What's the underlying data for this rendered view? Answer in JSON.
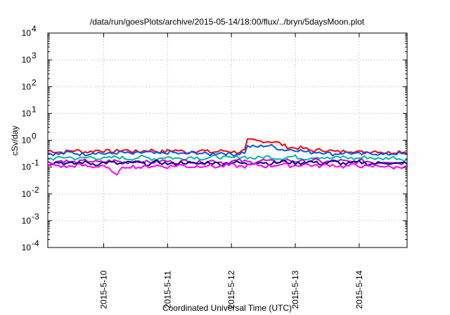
{
  "chart_data": {
    "type": "line",
    "title": "/data/run/goesPlots/archive/2015-05-14/18:00/flux/../bryn/5daysMoon.plot",
    "xlabel": "Coordinated Universal Time (UTC)",
    "ylabel": "cSv/day",
    "x_range": [
      "2015-05-09 03:00",
      "2015-05-14 18:00"
    ],
    "x_ticks": [
      "2015-5-10",
      "2015-5-11",
      "2015-5-12",
      "2015-5-13",
      "2015-5-14"
    ],
    "y_scale": "log",
    "ylim": [
      0.0001,
      10000
    ],
    "y_tick_bases": [
      "10",
      "10",
      "10",
      "10",
      "10",
      "10",
      "10",
      "10",
      "10"
    ],
    "y_tick_exponents": [
      "-4",
      "-3",
      "-2",
      "-1",
      "0",
      "1",
      "2",
      "3",
      "4"
    ],
    "grid": true,
    "legend": "none",
    "series": [
      {
        "color": "#ff0000",
        "x": [
          "2015-05-09 03:00",
          "2015-05-10 00:00",
          "2015-05-11 00:00",
          "2015-05-12 00:00",
          "2015-05-12 05:00",
          "2015-05-12 06:00",
          "2015-05-12 12:00",
          "2015-05-12 18:00",
          "2015-05-13 00:00",
          "2015-05-13 12:00",
          "2015-05-14 00:00",
          "2015-05-14 18:00"
        ],
        "y": [
          0.38,
          0.4,
          0.4,
          0.38,
          0.4,
          0.9,
          1.0,
          0.75,
          0.5,
          0.4,
          0.38,
          0.36
        ]
      },
      {
        "color": "#0055ff",
        "x": [
          "2015-05-09 03:00",
          "2015-05-10 00:00",
          "2015-05-11 00:00",
          "2015-05-12 00:00",
          "2015-05-12 05:00",
          "2015-05-12 06:00",
          "2015-05-12 12:00",
          "2015-05-12 18:00",
          "2015-05-13 00:00",
          "2015-05-13 12:00",
          "2015-05-14 00:00",
          "2015-05-14 18:00"
        ],
        "y": [
          0.32,
          0.33,
          0.33,
          0.32,
          0.33,
          0.55,
          0.65,
          0.5,
          0.42,
          0.33,
          0.32,
          0.3
        ]
      },
      {
        "color": "#00bb99",
        "x": [
          "2015-05-09 03:00",
          "2015-05-10 00:00",
          "2015-05-11 00:00",
          "2015-05-12 00:00",
          "2015-05-13 00:00",
          "2015-05-14 00:00",
          "2015-05-14 18:00"
        ],
        "y": [
          0.22,
          0.22,
          0.22,
          0.23,
          0.23,
          0.22,
          0.21
        ]
      },
      {
        "color": "#cc00cc",
        "x": [
          "2015-05-09 03:00",
          "2015-05-10 00:00",
          "2015-05-11 00:00",
          "2015-05-12 00:00",
          "2015-05-13 00:00",
          "2015-05-14 00:00",
          "2015-05-14 18:00"
        ],
        "y": [
          0.16,
          0.16,
          0.16,
          0.16,
          0.17,
          0.16,
          0.15
        ]
      },
      {
        "color": "#000088",
        "x": [
          "2015-05-09 03:00",
          "2015-05-10 00:00",
          "2015-05-11 00:00",
          "2015-05-12 00:00",
          "2015-05-13 00:00",
          "2015-05-14 00:00",
          "2015-05-14 18:00"
        ],
        "y": [
          0.14,
          0.14,
          0.14,
          0.14,
          0.15,
          0.14,
          0.14
        ]
      },
      {
        "color": "#ff00ff",
        "x": [
          "2015-05-09 03:00",
          "2015-05-10 00:00",
          "2015-05-10 04:00",
          "2015-05-10 08:00",
          "2015-05-11 00:00",
          "2015-05-12 00:00",
          "2015-05-13 00:00",
          "2015-05-14 00:00",
          "2015-05-14 18:00"
        ],
        "y": [
          0.11,
          0.11,
          0.055,
          0.1,
          0.11,
          0.11,
          0.12,
          0.11,
          0.1
        ]
      }
    ]
  }
}
